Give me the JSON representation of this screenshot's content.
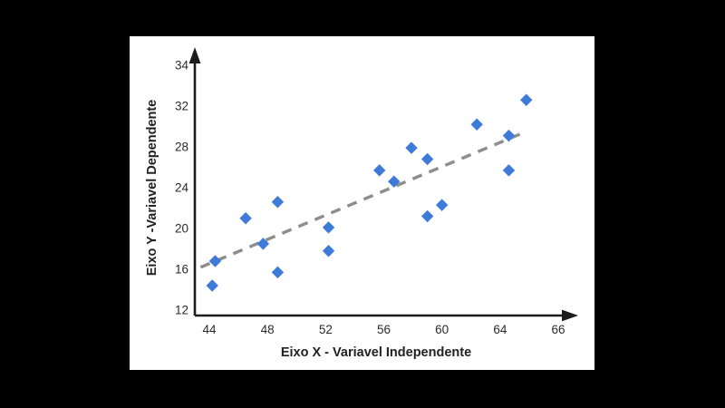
{
  "page": {
    "background_color": "#000000",
    "panel_background_color": "#ffffff"
  },
  "chart_data": {
    "type": "scatter",
    "title": "",
    "xlabel": "Eixo X - Variavel Independente",
    "ylabel": "Eixo Y -Variavel Dependente",
    "x_ticks": [
      44,
      48,
      52,
      56,
      60,
      64,
      66
    ],
    "y_ticks": [
      12,
      16,
      20,
      24,
      28,
      32,
      34
    ],
    "xlim": [
      43,
      66
    ],
    "ylim": [
      12,
      34
    ],
    "grid": false,
    "legend": null,
    "points": [
      {
        "x": 44.2,
        "y": 14.4
      },
      {
        "x": 44.4,
        "y": 16.8
      },
      {
        "x": 46.5,
        "y": 21.0
      },
      {
        "x": 47.7,
        "y": 18.5
      },
      {
        "x": 48.7,
        "y": 22.6
      },
      {
        "x": 48.7,
        "y": 15.7
      },
      {
        "x": 52.2,
        "y": 20.1
      },
      {
        "x": 52.2,
        "y": 17.8
      },
      {
        "x": 55.7,
        "y": 25.7
      },
      {
        "x": 56.7,
        "y": 24.6
      },
      {
        "x": 57.9,
        "y": 27.9
      },
      {
        "x": 59.0,
        "y": 26.8
      },
      {
        "x": 59.0,
        "y": 21.2
      },
      {
        "x": 60.0,
        "y": 22.3
      },
      {
        "x": 62.4,
        "y": 30.2
      },
      {
        "x": 64.3,
        "y": 29.1
      },
      {
        "x": 64.3,
        "y": 25.7
      },
      {
        "x": 64.9,
        "y": 32.3
      }
    ],
    "trendline": {
      "style": "dashed",
      "x1": 43.4,
      "y1": 16.2,
      "x2": 64.9,
      "y2": 29.5
    },
    "colors": {
      "point": "#3e7bd9",
      "trend": "#8d8d8d",
      "axis": "#1c1c1c",
      "text": "#2a2a2a"
    }
  }
}
